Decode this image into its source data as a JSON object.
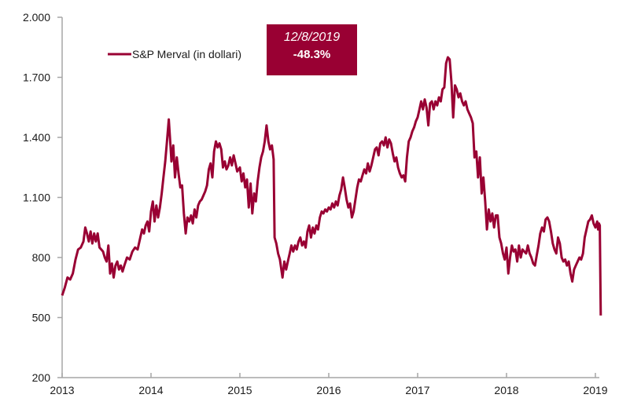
{
  "chart_data": {
    "type": "line",
    "title": "",
    "xlabel": "",
    "ylabel": "",
    "xlim": [
      2013.0,
      2019.1
    ],
    "ylim": [
      200,
      2000
    ],
    "grid": false,
    "legend_position": "top-left",
    "x_ticks": [
      2013,
      2014,
      2015,
      2016,
      2017,
      2018,
      2019
    ],
    "x_tick_labels": [
      "2013",
      "2014",
      "2015",
      "2016",
      "2017",
      "2018",
      "2019"
    ],
    "y_ticks": [
      200,
      500,
      800,
      1100,
      1400,
      1700,
      2000
    ],
    "y_tick_labels": [
      "200",
      "500",
      "800",
      "1.100",
      "1.400",
      "1.700",
      "2.000"
    ],
    "series": [
      {
        "name": "S&P Merval (in dollari)",
        "color": "#990033",
        "points": [
          [
            2013.0,
            610
          ],
          [
            2013.03,
            650
          ],
          [
            2013.06,
            700
          ],
          [
            2013.09,
            690
          ],
          [
            2013.12,
            720
          ],
          [
            2013.15,
            790
          ],
          [
            2013.18,
            840
          ],
          [
            2013.21,
            850
          ],
          [
            2013.24,
            880
          ],
          [
            2013.26,
            950
          ],
          [
            2013.28,
            920
          ],
          [
            2013.3,
            880
          ],
          [
            2013.32,
            930
          ],
          [
            2013.34,
            870
          ],
          [
            2013.36,
            920
          ],
          [
            2013.38,
            880
          ],
          [
            2013.4,
            920
          ],
          [
            2013.42,
            850
          ],
          [
            2013.44,
            840
          ],
          [
            2013.46,
            830
          ],
          [
            2013.48,
            800
          ],
          [
            2013.5,
            780
          ],
          [
            2013.52,
            860
          ],
          [
            2013.54,
            720
          ],
          [
            2013.56,
            770
          ],
          [
            2013.58,
            700
          ],
          [
            2013.6,
            760
          ],
          [
            2013.62,
            780
          ],
          [
            2013.64,
            740
          ],
          [
            2013.66,
            760
          ],
          [
            2013.68,
            730
          ],
          [
            2013.7,
            760
          ],
          [
            2013.73,
            800
          ],
          [
            2013.76,
            790
          ],
          [
            2013.79,
            830
          ],
          [
            2013.82,
            850
          ],
          [
            2013.85,
            840
          ],
          [
            2013.88,
            900
          ],
          [
            2013.9,
            940
          ],
          [
            2013.92,
            920
          ],
          [
            2013.94,
            960
          ],
          [
            2013.96,
            980
          ],
          [
            2013.98,
            930
          ],
          [
            2014.0,
            1030
          ],
          [
            2014.02,
            1080
          ],
          [
            2014.04,
            980
          ],
          [
            2014.06,
            1060
          ],
          [
            2014.08,
            1000
          ],
          [
            2014.1,
            1050
          ],
          [
            2014.12,
            1120
          ],
          [
            2014.14,
            1200
          ],
          [
            2014.16,
            1280
          ],
          [
            2014.18,
            1380
          ],
          [
            2014.2,
            1490
          ],
          [
            2014.22,
            1350
          ],
          [
            2014.23,
            1280
          ],
          [
            2014.25,
            1360
          ],
          [
            2014.27,
            1200
          ],
          [
            2014.29,
            1300
          ],
          [
            2014.31,
            1220
          ],
          [
            2014.33,
            1150
          ],
          [
            2014.35,
            1160
          ],
          [
            2014.37,
            1020
          ],
          [
            2014.39,
            920
          ],
          [
            2014.41,
            1000
          ],
          [
            2014.43,
            980
          ],
          [
            2014.45,
            1010
          ],
          [
            2014.47,
            970
          ],
          [
            2014.49,
            1040
          ],
          [
            2014.51,
            1000
          ],
          [
            2014.53,
            1060
          ],
          [
            2014.55,
            1080
          ],
          [
            2014.57,
            1090
          ],
          [
            2014.59,
            1110
          ],
          [
            2014.61,
            1130
          ],
          [
            2014.63,
            1160
          ],
          [
            2014.65,
            1240
          ],
          [
            2014.67,
            1270
          ],
          [
            2014.69,
            1200
          ],
          [
            2014.71,
            1330
          ],
          [
            2014.73,
            1380
          ],
          [
            2014.75,
            1350
          ],
          [
            2014.77,
            1370
          ],
          [
            2014.79,
            1340
          ],
          [
            2014.81,
            1250
          ],
          [
            2014.83,
            1280
          ],
          [
            2014.85,
            1240
          ],
          [
            2014.87,
            1260
          ],
          [
            2014.89,
            1300
          ],
          [
            2014.91,
            1260
          ],
          [
            2014.93,
            1310
          ],
          [
            2014.95,
            1270
          ],
          [
            2014.97,
            1230
          ],
          [
            2015.0,
            1250
          ],
          [
            2015.02,
            1180
          ],
          [
            2015.04,
            1220
          ],
          [
            2015.06,
            1150
          ],
          [
            2015.08,
            1190
          ],
          [
            2015.1,
            1050
          ],
          [
            2015.12,
            1170
          ],
          [
            2015.14,
            1020
          ],
          [
            2015.16,
            1120
          ],
          [
            2015.18,
            1080
          ],
          [
            2015.2,
            1180
          ],
          [
            2015.22,
            1250
          ],
          [
            2015.24,
            1300
          ],
          [
            2015.26,
            1330
          ],
          [
            2015.28,
            1380
          ],
          [
            2015.3,
            1460
          ],
          [
            2015.32,
            1380
          ],
          [
            2015.34,
            1340
          ],
          [
            2015.36,
            1360
          ],
          [
            2015.38,
            1290
          ],
          [
            2015.39,
            900
          ],
          [
            2015.41,
            870
          ],
          [
            2015.43,
            820
          ],
          [
            2015.45,
            790
          ],
          [
            2015.47,
            730
          ],
          [
            2015.48,
            700
          ],
          [
            2015.5,
            780
          ],
          [
            2015.52,
            740
          ],
          [
            2015.54,
            780
          ],
          [
            2015.56,
            820
          ],
          [
            2015.58,
            860
          ],
          [
            2015.6,
            830
          ],
          [
            2015.62,
            860
          ],
          [
            2015.64,
            840
          ],
          [
            2015.66,
            880
          ],
          [
            2015.68,
            900
          ],
          [
            2015.7,
            860
          ],
          [
            2015.72,
            880
          ],
          [
            2015.74,
            850
          ],
          [
            2015.76,
            930
          ],
          [
            2015.78,
            960
          ],
          [
            2015.8,
            900
          ],
          [
            2015.82,
            950
          ],
          [
            2015.84,
            920
          ],
          [
            2015.86,
            960
          ],
          [
            2015.88,
            940
          ],
          [
            2015.9,
            1000
          ],
          [
            2015.92,
            1030
          ],
          [
            2015.94,
            1020
          ],
          [
            2015.96,
            1040
          ],
          [
            2015.98,
            1030
          ],
          [
            2016.0,
            1050
          ],
          [
            2016.02,
            1040
          ],
          [
            2016.04,
            1070
          ],
          [
            2016.06,
            1050
          ],
          [
            2016.08,
            1080
          ],
          [
            2016.1,
            1060
          ],
          [
            2016.12,
            1110
          ],
          [
            2016.14,
            1140
          ],
          [
            2016.16,
            1200
          ],
          [
            2016.18,
            1150
          ],
          [
            2016.2,
            1090
          ],
          [
            2016.22,
            1050
          ],
          [
            2016.24,
            1070
          ],
          [
            2016.26,
            1000
          ],
          [
            2016.28,
            1030
          ],
          [
            2016.3,
            1090
          ],
          [
            2016.32,
            1150
          ],
          [
            2016.34,
            1190
          ],
          [
            2016.36,
            1180
          ],
          [
            2016.38,
            1210
          ],
          [
            2016.4,
            1240
          ],
          [
            2016.42,
            1220
          ],
          [
            2016.44,
            1270
          ],
          [
            2016.46,
            1230
          ],
          [
            2016.48,
            1260
          ],
          [
            2016.5,
            1300
          ],
          [
            2016.52,
            1340
          ],
          [
            2016.54,
            1350
          ],
          [
            2016.56,
            1310
          ],
          [
            2016.58,
            1370
          ],
          [
            2016.6,
            1380
          ],
          [
            2016.62,
            1360
          ],
          [
            2016.64,
            1400
          ],
          [
            2016.66,
            1350
          ],
          [
            2016.68,
            1390
          ],
          [
            2016.7,
            1370
          ],
          [
            2016.72,
            1320
          ],
          [
            2016.74,
            1280
          ],
          [
            2016.76,
            1300
          ],
          [
            2016.78,
            1250
          ],
          [
            2016.8,
            1220
          ],
          [
            2016.82,
            1200
          ],
          [
            2016.84,
            1210
          ],
          [
            2016.86,
            1180
          ],
          [
            2016.88,
            1300
          ],
          [
            2016.9,
            1380
          ],
          [
            2016.92,
            1400
          ],
          [
            2016.94,
            1430
          ],
          [
            2016.96,
            1450
          ],
          [
            2016.98,
            1480
          ],
          [
            2017.0,
            1500
          ],
          [
            2017.02,
            1540
          ],
          [
            2017.04,
            1580
          ],
          [
            2017.06,
            1540
          ],
          [
            2017.08,
            1590
          ],
          [
            2017.1,
            1550
          ],
          [
            2017.12,
            1460
          ],
          [
            2017.14,
            1570
          ],
          [
            2017.16,
            1580
          ],
          [
            2017.18,
            1540
          ],
          [
            2017.2,
            1580
          ],
          [
            2017.22,
            1560
          ],
          [
            2017.24,
            1600
          ],
          [
            2017.26,
            1580
          ],
          [
            2017.28,
            1640
          ],
          [
            2017.3,
            1650
          ],
          [
            2017.32,
            1770
          ],
          [
            2017.34,
            1800
          ],
          [
            2017.36,
            1790
          ],
          [
            2017.38,
            1680
          ],
          [
            2017.4,
            1500
          ],
          [
            2017.42,
            1660
          ],
          [
            2017.44,
            1640
          ],
          [
            2017.46,
            1600
          ],
          [
            2017.48,
            1620
          ],
          [
            2017.5,
            1580
          ],
          [
            2017.52,
            1560
          ],
          [
            2017.54,
            1580
          ],
          [
            2017.56,
            1540
          ],
          [
            2017.58,
            1520
          ],
          [
            2017.6,
            1500
          ],
          [
            2017.62,
            1470
          ],
          [
            2017.64,
            1300
          ],
          [
            2017.66,
            1330
          ],
          [
            2017.68,
            1200
          ],
          [
            2017.7,
            1300
          ],
          [
            2017.72,
            1120
          ],
          [
            2017.74,
            1200
          ],
          [
            2017.76,
            1080
          ],
          [
            2017.78,
            940
          ],
          [
            2017.8,
            1040
          ],
          [
            2017.82,
            980
          ],
          [
            2017.84,
            1020
          ],
          [
            2017.86,
            950
          ],
          [
            2017.88,
            1010
          ],
          [
            2017.9,
            1010
          ],
          [
            2017.92,
            900
          ],
          [
            2017.94,
            870
          ],
          [
            2017.96,
            820
          ],
          [
            2017.98,
            790
          ],
          [
            2018.0,
            850
          ],
          [
            2018.02,
            720
          ],
          [
            2018.04,
            800
          ],
          [
            2018.06,
            860
          ],
          [
            2018.08,
            830
          ],
          [
            2018.1,
            840
          ],
          [
            2018.12,
            780
          ],
          [
            2018.14,
            860
          ],
          [
            2018.16,
            800
          ],
          [
            2018.18,
            840
          ],
          [
            2018.2,
            830
          ],
          [
            2018.22,
            820
          ],
          [
            2018.24,
            860
          ],
          [
            2018.26,
            820
          ],
          [
            2018.28,
            800
          ],
          [
            2018.3,
            770
          ],
          [
            2018.32,
            760
          ],
          [
            2018.34,
            810
          ],
          [
            2018.36,
            860
          ],
          [
            2018.38,
            920
          ],
          [
            2018.4,
            950
          ],
          [
            2018.42,
            930
          ],
          [
            2018.44,
            990
          ],
          [
            2018.46,
            1000
          ],
          [
            2018.48,
            980
          ],
          [
            2018.5,
            930
          ],
          [
            2018.52,
            870
          ],
          [
            2018.54,
            840
          ],
          [
            2018.56,
            820
          ],
          [
            2018.58,
            900
          ],
          [
            2018.6,
            870
          ],
          [
            2018.62,
            800
          ],
          [
            2018.64,
            780
          ],
          [
            2018.66,
            790
          ],
          [
            2018.68,
            760
          ],
          [
            2018.7,
            780
          ],
          [
            2018.72,
            720
          ],
          [
            2018.74,
            680
          ],
          [
            2018.76,
            740
          ],
          [
            2018.78,
            760
          ],
          [
            2018.8,
            780
          ],
          [
            2018.82,
            800
          ],
          [
            2018.84,
            790
          ],
          [
            2018.86,
            820
          ],
          [
            2018.88,
            900
          ],
          [
            2018.9,
            940
          ],
          [
            2018.92,
            980
          ],
          [
            2018.94,
            990
          ],
          [
            2018.96,
            1010
          ],
          [
            2018.98,
            970
          ],
          [
            2019.0,
            950
          ],
          [
            2019.02,
            980
          ],
          [
            2019.03,
            940
          ],
          [
            2019.04,
            970
          ],
          [
            2019.05,
            960
          ],
          [
            2019.06,
            510
          ]
        ]
      }
    ],
    "annotations": [
      {
        "date_label": "12/8/2019",
        "value_label": "-48.3%",
        "background": "#990033",
        "text_color": "#ffffff"
      }
    ]
  }
}
